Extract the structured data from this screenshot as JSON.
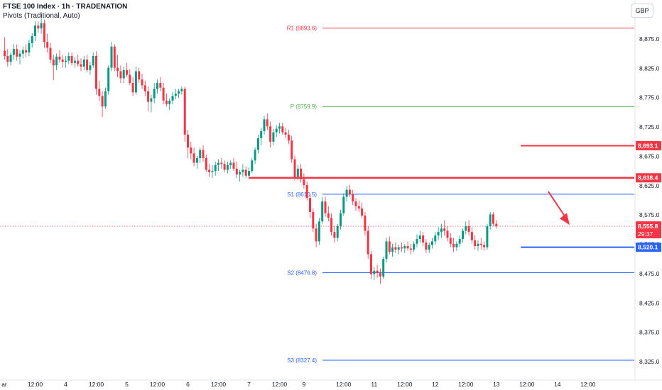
{
  "header": {
    "symbol_line": "FTSE 100 Index · 1h · TRADENATION",
    "indicator_line": "Pivots (Traditional, Auto)",
    "currency": "GBP"
  },
  "colors": {
    "up": "#089981",
    "down": "#f23645",
    "pivot_r": "#f23645",
    "pivot_p": "#4caf50",
    "pivot_s": "#2962ff",
    "resistance": "#f23645",
    "support": "#2962ff"
  },
  "chart_data": {
    "type": "candlestick",
    "ylim": [
      8300,
      8920
    ],
    "y_ticks": [
      8325,
      8375,
      8425,
      8475,
      8525,
      8575,
      8625,
      8675,
      8725,
      8775,
      8825,
      8875
    ],
    "y_tick_labels": [
      "8,325.0",
      "8,375.0",
      "8,425.0",
      "8,475.0",
      "8,525.0",
      "8,575.0",
      "8,625.0",
      "8,675.0",
      "8,725.0",
      "8,775.0",
      "8,825.0",
      "8,875.0"
    ],
    "x_labels": [
      {
        "i": -1,
        "label": "ar"
      },
      {
        "i": 10,
        "label": "12:00"
      },
      {
        "i": 20,
        "label": "4"
      },
      {
        "i": 30,
        "label": "12:00"
      },
      {
        "i": 40,
        "label": "5"
      },
      {
        "i": 50,
        "label": "12:00"
      },
      {
        "i": 60,
        "label": "6"
      },
      {
        "i": 70,
        "label": "12:00"
      },
      {
        "i": 80,
        "label": "7"
      },
      {
        "i": 90,
        "label": "12:00"
      },
      {
        "i": 98,
        "label": "9"
      },
      {
        "i": 111,
        "label": "12:00"
      },
      {
        "i": 121,
        "label": "11"
      },
      {
        "i": 131,
        "label": "12:00"
      },
      {
        "i": 141,
        "label": "12"
      },
      {
        "i": 151,
        "label": "12:00"
      },
      {
        "i": 161,
        "label": "13"
      },
      {
        "i": 171,
        "label": "12:00"
      },
      {
        "i": 181,
        "label": "14"
      },
      {
        "i": 191,
        "label": "12:00"
      }
    ],
    "pivots": [
      {
        "label": "R1 (8893.6)",
        "value": 8893.6,
        "kind": "r"
      },
      {
        "label": "P (8759.9)",
        "value": 8759.9,
        "kind": "p"
      },
      {
        "label": "S1 (8610.5)",
        "value": 8610.5,
        "kind": "s"
      },
      {
        "label": "S2 (8476.8)",
        "value": 8476.8,
        "kind": "s"
      },
      {
        "label": "S3 (8327.4)",
        "value": 8327.4,
        "kind": "s"
      }
    ],
    "levels": [
      {
        "value": 8693.1,
        "label": "8,693.1",
        "kind": "resistance",
        "from": 169,
        "width": 2
      },
      {
        "value": 8638.4,
        "label": "8,638.4",
        "kind": "resistance",
        "from": 80,
        "width": 2.5
      },
      {
        "value": 8520.1,
        "label": "8,520.1",
        "kind": "support",
        "from": 169,
        "width": 2
      }
    ],
    "last_price": {
      "value": 8555.8,
      "label": "8,555.8",
      "countdown": "29:37"
    },
    "arrow": {
      "from_i": 178,
      "from_value": 8615,
      "to_i": 185,
      "to_value": 8558
    },
    "candles": [
      [
        8855,
        8878,
        8840,
        8846
      ],
      [
        8846,
        8858,
        8828,
        8836
      ],
      [
        8836,
        8852,
        8830,
        8848
      ],
      [
        8848,
        8866,
        8840,
        8858
      ],
      [
        8858,
        8866,
        8838,
        8845
      ],
      [
        8845,
        8856,
        8832,
        8850
      ],
      [
        8850,
        8862,
        8842,
        8856
      ],
      [
        8856,
        8866,
        8845,
        8852
      ],
      [
        8852,
        8874,
        8846,
        8868
      ],
      [
        8868,
        8885,
        8860,
        8880
      ],
      [
        8880,
        8905,
        8872,
        8898
      ],
      [
        8898,
        8905,
        8886,
        8893
      ],
      [
        8893,
        8910,
        8884,
        8902
      ],
      [
        8902,
        8908,
        8860,
        8870
      ],
      [
        8870,
        8884,
        8852,
        8860
      ],
      [
        8860,
        8868,
        8834,
        8840
      ],
      [
        8840,
        8848,
        8805,
        8830
      ],
      [
        8830,
        8850,
        8822,
        8845
      ],
      [
        8845,
        8856,
        8835,
        8840
      ],
      [
        8840,
        8848,
        8826,
        8836
      ],
      [
        8836,
        8846,
        8826,
        8838
      ],
      [
        8838,
        8852,
        8832,
        8846
      ],
      [
        8846,
        8852,
        8830,
        8834
      ],
      [
        8834,
        8844,
        8826,
        8838
      ],
      [
        8838,
        8848,
        8828,
        8832
      ],
      [
        8832,
        8842,
        8820,
        8828
      ],
      [
        8828,
        8846,
        8822,
        8840
      ],
      [
        8840,
        8848,
        8818,
        8822
      ],
      [
        8822,
        8836,
        8814,
        8830
      ],
      [
        8830,
        8852,
        8826,
        8846
      ],
      [
        8846,
        8854,
        8780,
        8790
      ],
      [
        8790,
        8804,
        8770,
        8778
      ],
      [
        8778,
        8786,
        8742,
        8760
      ],
      [
        8760,
        8792,
        8756,
        8786
      ],
      [
        8786,
        8830,
        8780,
        8826
      ],
      [
        8826,
        8870,
        8820,
        8862
      ],
      [
        8862,
        8866,
        8820,
        8826
      ],
      [
        8826,
        8848,
        8810,
        8820
      ],
      [
        8820,
        8830,
        8800,
        8808
      ],
      [
        8808,
        8828,
        8800,
        8822
      ],
      [
        8822,
        8834,
        8810,
        8814
      ],
      [
        8814,
        8824,
        8796,
        8800
      ],
      [
        8800,
        8810,
        8778,
        8784
      ],
      [
        8784,
        8828,
        8780,
        8820
      ],
      [
        8820,
        8826,
        8800,
        8806
      ],
      [
        8806,
        8816,
        8790,
        8796
      ],
      [
        8796,
        8804,
        8778,
        8786
      ],
      [
        8786,
        8794,
        8752,
        8768
      ],
      [
        8768,
        8780,
        8750,
        8774
      ],
      [
        8774,
        8800,
        8766,
        8790
      ],
      [
        8790,
        8806,
        8782,
        8800
      ],
      [
        8800,
        8810,
        8786,
        8792
      ],
      [
        8792,
        8800,
        8764,
        8770
      ],
      [
        8770,
        8782,
        8760,
        8764
      ],
      [
        8764,
        8774,
        8754,
        8770
      ],
      [
        8770,
        8784,
        8764,
        8778
      ],
      [
        8778,
        8790,
        8772,
        8782
      ],
      [
        8782,
        8790,
        8774,
        8786
      ],
      [
        8786,
        8794,
        8780,
        8790
      ],
      [
        8790,
        8794,
        8700,
        8712
      ],
      [
        8712,
        8720,
        8672,
        8690
      ],
      [
        8690,
        8700,
        8670,
        8680
      ],
      [
        8680,
        8690,
        8658,
        8664
      ],
      [
        8664,
        8676,
        8654,
        8672
      ],
      [
        8672,
        8690,
        8664,
        8686
      ],
      [
        8686,
        8694,
        8666,
        8672
      ],
      [
        8672,
        8678,
        8648,
        8652
      ],
      [
        8652,
        8662,
        8640,
        8648
      ],
      [
        8648,
        8660,
        8638,
        8650
      ],
      [
        8650,
        8666,
        8642,
        8660
      ],
      [
        8660,
        8670,
        8650,
        8664
      ],
      [
        8664,
        8672,
        8654,
        8662
      ],
      [
        8662,
        8668,
        8648,
        8652
      ],
      [
        8652,
        8666,
        8646,
        8660
      ],
      [
        8660,
        8668,
        8654,
        8664
      ],
      [
        8664,
        8672,
        8650,
        8654
      ],
      [
        8654,
        8666,
        8638,
        8644
      ],
      [
        8644,
        8652,
        8632,
        8648
      ],
      [
        8648,
        8662,
        8640,
        8652
      ],
      [
        8652,
        8658,
        8638,
        8642
      ],
      [
        8642,
        8656,
        8636,
        8650
      ],
      [
        8650,
        8672,
        8646,
        8668
      ],
      [
        8668,
        8690,
        8662,
        8686
      ],
      [
        8686,
        8712,
        8680,
        8706
      ],
      [
        8706,
        8724,
        8694,
        8718
      ],
      [
        8718,
        8744,
        8712,
        8738
      ],
      [
        8738,
        8748,
        8720,
        8726
      ],
      [
        8726,
        8734,
        8690,
        8700
      ],
      [
        8700,
        8722,
        8694,
        8716
      ],
      [
        8716,
        8728,
        8708,
        8722
      ],
      [
        8722,
        8732,
        8714,
        8726
      ],
      [
        8726,
        8732,
        8712,
        8716
      ],
      [
        8716,
        8724,
        8706,
        8712
      ],
      [
        8712,
        8720,
        8696,
        8702
      ],
      [
        8702,
        8710,
        8664,
        8670
      ],
      [
        8670,
        8676,
        8634,
        8640
      ],
      [
        8640,
        8660,
        8634,
        8654
      ],
      [
        8654,
        8662,
        8630,
        8636
      ],
      [
        8636,
        8646,
        8620,
        8626
      ],
      [
        8626,
        8632,
        8600,
        8604
      ],
      [
        8604,
        8610,
        8570,
        8580
      ],
      [
        8580,
        8586,
        8546,
        8552
      ],
      [
        8552,
        8560,
        8520,
        8530
      ],
      [
        8530,
        8570,
        8524,
        8564
      ],
      [
        8564,
        8606,
        8560,
        8598
      ],
      [
        8598,
        8606,
        8572,
        8578
      ],
      [
        8578,
        8590,
        8564,
        8570
      ],
      [
        8570,
        8578,
        8540,
        8546
      ],
      [
        8546,
        8556,
        8528,
        8536
      ],
      [
        8536,
        8560,
        8530,
        8556
      ],
      [
        8556,
        8584,
        8550,
        8578
      ],
      [
        8578,
        8612,
        8574,
        8606
      ],
      [
        8606,
        8624,
        8598,
        8618
      ],
      [
        8618,
        8626,
        8606,
        8610
      ],
      [
        8610,
        8618,
        8592,
        8598
      ],
      [
        8598,
        8604,
        8582,
        8590
      ],
      [
        8590,
        8600,
        8580,
        8586
      ],
      [
        8586,
        8596,
        8570,
        8574
      ],
      [
        8574,
        8580,
        8540,
        8548
      ],
      [
        8548,
        8556,
        8500,
        8508
      ],
      [
        8508,
        8514,
        8466,
        8474
      ],
      [
        8474,
        8486,
        8464,
        8480
      ],
      [
        8480,
        8490,
        8468,
        8476
      ],
      [
        8476,
        8484,
        8458,
        8470
      ],
      [
        8470,
        8504,
        8466,
        8500
      ],
      [
        8500,
        8536,
        8494,
        8530
      ],
      [
        8530,
        8538,
        8508,
        8512
      ],
      [
        8512,
        8526,
        8504,
        8520
      ],
      [
        8520,
        8528,
        8510,
        8516
      ],
      [
        8516,
        8524,
        8508,
        8520
      ],
      [
        8520,
        8528,
        8512,
        8518
      ],
      [
        8518,
        8526,
        8510,
        8522
      ],
      [
        8522,
        8530,
        8514,
        8518
      ],
      [
        8518,
        8526,
        8508,
        8516
      ],
      [
        8516,
        8530,
        8512,
        8526
      ],
      [
        8526,
        8542,
        8520,
        8534
      ],
      [
        8534,
        8548,
        8528,
        8540
      ],
      [
        8540,
        8546,
        8522,
        8528
      ],
      [
        8528,
        8534,
        8510,
        8516
      ],
      [
        8516,
        8528,
        8510,
        8524
      ],
      [
        8524,
        8536,
        8518,
        8530
      ],
      [
        8530,
        8546,
        8524,
        8540
      ],
      [
        8540,
        8554,
        8532,
        8546
      ],
      [
        8546,
        8560,
        8536,
        8552
      ],
      [
        8552,
        8566,
        8540,
        8548
      ],
      [
        8548,
        8556,
        8530,
        8536
      ],
      [
        8536,
        8544,
        8520,
        8526
      ],
      [
        8526,
        8536,
        8512,
        8520
      ],
      [
        8520,
        8530,
        8514,
        8526
      ],
      [
        8526,
        8540,
        8520,
        8534
      ],
      [
        8534,
        8552,
        8528,
        8548
      ],
      [
        8548,
        8564,
        8542,
        8556
      ],
      [
        8556,
        8566,
        8540,
        8546
      ],
      [
        8546,
        8554,
        8526,
        8532
      ],
      [
        8532,
        8540,
        8516,
        8522
      ],
      [
        8522,
        8532,
        8514,
        8526
      ],
      [
        8526,
        8536,
        8516,
        8524
      ],
      [
        8524,
        8530,
        8514,
        8520
      ],
      [
        8520,
        8560,
        8516,
        8556
      ],
      [
        8556,
        8580,
        8550,
        8576
      ],
      [
        8576,
        8580,
        8556,
        8560
      ],
      [
        8560,
        8566,
        8552,
        8556
      ]
    ]
  }
}
